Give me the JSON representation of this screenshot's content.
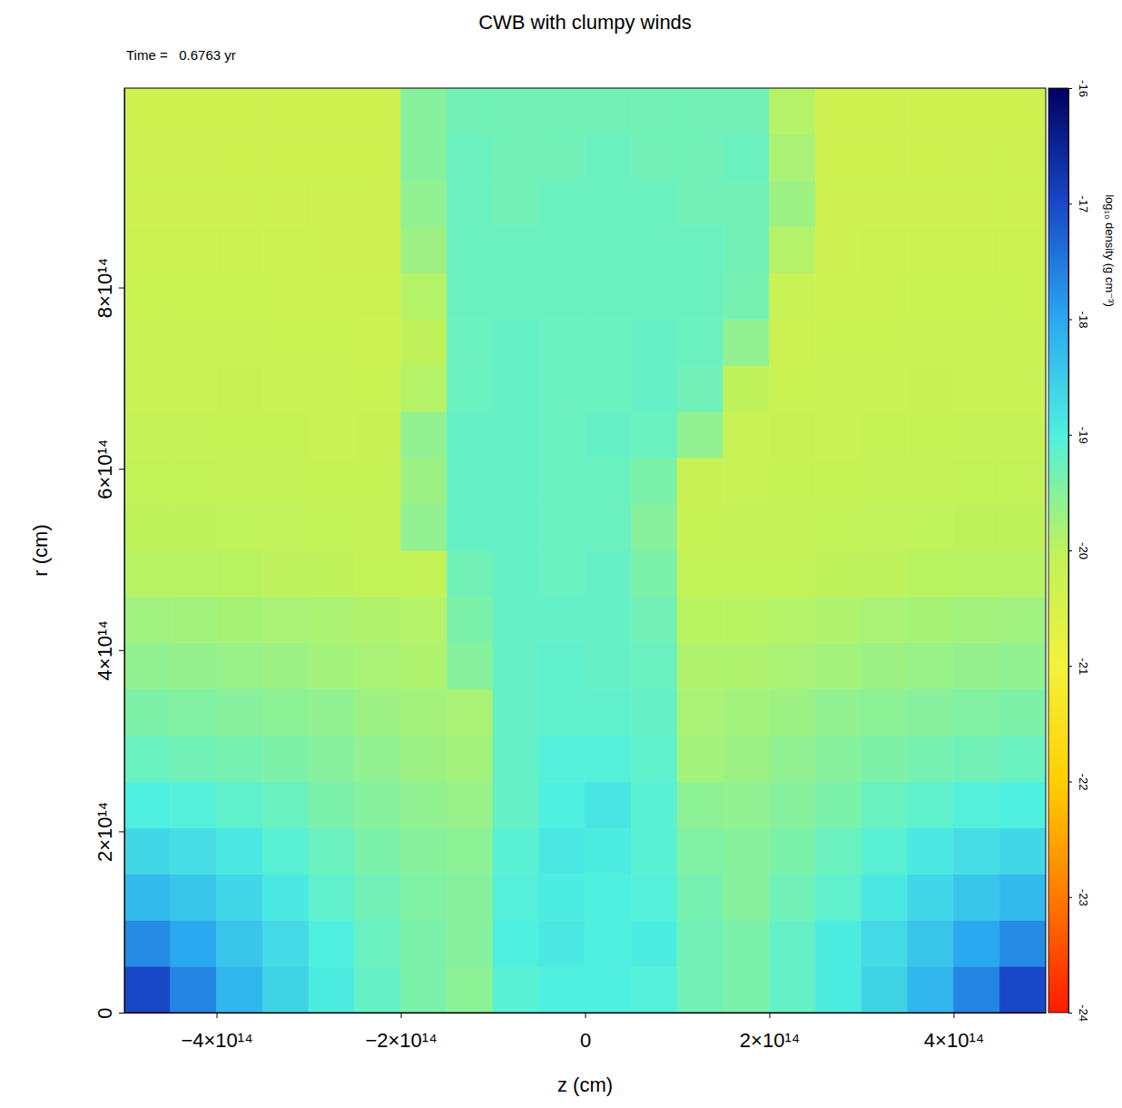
{
  "chart_data": {
    "type": "heatmap",
    "title": "CWB with clumpy winds",
    "subtitle": "Time =   0.6763 yr",
    "x_label": "z (cm)",
    "y_label": "r (cm)",
    "xlim": [
      -500000000000000.0,
      500000000000000.0
    ],
    "ylim": [
      0,
      1020000000000000.0
    ],
    "xticks": [
      {
        "value": -400000000000000.0,
        "label": "−4×10¹⁴"
      },
      {
        "value": -200000000000000.0,
        "label": "−2×10¹⁴"
      },
      0,
      {
        "value": 200000000000000.0,
        "label": "2×10¹⁴"
      },
      {
        "value": 400000000000000.0,
        "label": "4×10¹⁴"
      }
    ],
    "yticks": [
      0,
      {
        "value": 200000000000000.0,
        "label": "2×10¹⁴"
      },
      {
        "value": 400000000000000.0,
        "label": "4×10¹⁴"
      },
      {
        "value": 600000000000000.0,
        "label": "6×10¹⁴"
      },
      {
        "value": 800000000000000.0,
        "label": "8×10¹⁴"
      }
    ],
    "x_edges": [
      -500000000000000.0,
      -450000000000000.0,
      -400000000000000.0,
      -350000000000000.0,
      -300000000000000.0,
      -250000000000000.0,
      -200000000000000.0,
      -150000000000000.0,
      -100000000000000.0,
      -50000000000000.0,
      0,
      50000000000000.0,
      100000000000000.0,
      150000000000000.0,
      200000000000000.0,
      250000000000000.0,
      300000000000000.0,
      350000000000000.0,
      400000000000000.0,
      450000000000000.0,
      500000000000000.0
    ],
    "y_edges": [
      0,
      51000000000000.0,
      102000000000000.0,
      153000000000000.0,
      204000000000000.0,
      255000000000000.0,
      306000000000000.0,
      357000000000000.0,
      408000000000000.0,
      459000000000000.0,
      510000000000000.0,
      561000000000000.0,
      612000000000000.0,
      663000000000000.0,
      714000000000000.0,
      765000000000000.0,
      816000000000000.0,
      867000000000000.0,
      918000000000000.0,
      969000000000000.0,
      1020000000000000.0
    ],
    "cells": [
      [
        -17.0,
        -17.65,
        -18.2,
        -18.6,
        -18.95,
        -19.2,
        -19.4,
        -19.55,
        -19.1,
        -19.0,
        -19.0,
        -19.05,
        -19.3,
        -19.4,
        -19.2,
        -18.95,
        -18.6,
        -18.2,
        -17.65,
        -17.0
      ],
      [
        -17.7,
        -18.0,
        -18.4,
        -18.7,
        -19.0,
        -19.25,
        -19.4,
        -19.5,
        -19.0,
        -18.9,
        -19.0,
        -18.95,
        -19.3,
        -19.4,
        -19.2,
        -18.95,
        -18.7,
        -18.4,
        -18.0,
        -17.7
      ],
      [
        -18.25,
        -18.4,
        -18.65,
        -18.9,
        -19.15,
        -19.3,
        -19.45,
        -19.5,
        -19.05,
        -18.95,
        -19.0,
        -19.05,
        -19.35,
        -19.5,
        -19.3,
        -19.15,
        -18.9,
        -18.65,
        -18.4,
        -18.25
      ],
      [
        -18.65,
        -18.75,
        -18.9,
        -19.1,
        -19.25,
        -19.4,
        -19.5,
        -19.55,
        -19.1,
        -18.9,
        -18.95,
        -19.1,
        -19.45,
        -19.5,
        -19.4,
        -19.25,
        -19.1,
        -18.9,
        -18.75,
        -18.65
      ],
      [
        -19.0,
        -19.05,
        -19.15,
        -19.25,
        -19.4,
        -19.5,
        -19.6,
        -19.65,
        -19.2,
        -19.0,
        -18.85,
        -19.1,
        -19.55,
        -19.6,
        -19.5,
        -19.4,
        -19.25,
        -19.15,
        -19.05,
        -19.0
      ],
      [
        -19.25,
        -19.3,
        -19.35,
        -19.42,
        -19.5,
        -19.6,
        -19.7,
        -19.75,
        -19.2,
        -19.05,
        -19.05,
        -19.15,
        -19.75,
        -19.7,
        -19.6,
        -19.5,
        -19.42,
        -19.35,
        -19.3,
        -19.25
      ],
      [
        -19.42,
        -19.45,
        -19.5,
        -19.55,
        -19.6,
        -19.7,
        -19.75,
        -19.8,
        -19.2,
        -19.15,
        -19.15,
        -19.2,
        -19.8,
        -19.75,
        -19.7,
        -19.6,
        -19.55,
        -19.5,
        -19.45,
        -19.42
      ],
      [
        -19.6,
        -19.62,
        -19.65,
        -19.7,
        -19.75,
        -19.8,
        -19.85,
        -19.5,
        -19.2,
        -19.15,
        -19.2,
        -19.25,
        -19.85,
        -19.85,
        -19.8,
        -19.75,
        -19.7,
        -19.65,
        -19.62,
        -19.6
      ],
      [
        -19.72,
        -19.75,
        -19.78,
        -19.8,
        -19.82,
        -19.87,
        -19.9,
        -19.4,
        -19.2,
        -19.2,
        -19.2,
        -19.3,
        -19.95,
        -19.95,
        -19.9,
        -19.85,
        -19.8,
        -19.78,
        -19.75,
        -19.72
      ],
      [
        -19.93,
        -19.94,
        -19.95,
        -19.98,
        -20.0,
        -20.05,
        -20.05,
        -19.3,
        -19.2,
        -19.25,
        -19.2,
        -19.4,
        -20.08,
        -20.05,
        -20.05,
        -20.0,
        -19.98,
        -19.95,
        -19.94,
        -19.93
      ],
      [
        -20.0,
        -20.0,
        -20.02,
        -20.03,
        -20.06,
        -20.1,
        -19.6,
        -19.2,
        -19.2,
        -19.25,
        -19.25,
        -19.5,
        -20.15,
        -20.12,
        -20.1,
        -20.06,
        -20.03,
        -20.02,
        -20.0,
        -20.0
      ],
      [
        -20.07,
        -20.08,
        -20.1,
        -20.12,
        -20.14,
        -20.15,
        -19.7,
        -19.2,
        -19.2,
        -19.25,
        -19.25,
        -19.4,
        -20.18,
        -20.17,
        -20.15,
        -20.14,
        -20.12,
        -20.1,
        -20.08,
        -20.07
      ],
      [
        -20.12,
        -20.12,
        -20.14,
        -20.15,
        -20.17,
        -20.18,
        -19.6,
        -19.2,
        -19.2,
        -19.25,
        -19.2,
        -19.25,
        -19.6,
        -20.2,
        -20.18,
        -20.17,
        -20.15,
        -20.14,
        -20.12,
        -20.12
      ],
      [
        -20.17,
        -20.17,
        -20.18,
        -20.2,
        -20.2,
        -20.22,
        -19.9,
        -19.25,
        -19.2,
        -19.25,
        -19.25,
        -19.2,
        -19.3,
        -20.0,
        -20.22,
        -20.2,
        -20.2,
        -20.18,
        -20.17,
        -20.17
      ],
      [
        -20.2,
        -20.2,
        -20.2,
        -20.22,
        -20.22,
        -20.25,
        -20.0,
        -19.25,
        -19.2,
        -19.25,
        -19.25,
        -19.2,
        -19.25,
        -19.6,
        -20.25,
        -20.22,
        -20.22,
        -20.2,
        -20.2,
        -20.2
      ],
      [
        -20.22,
        -20.22,
        -20.23,
        -20.24,
        -20.25,
        -20.25,
        -19.9,
        -19.25,
        -19.25,
        -19.25,
        -19.25,
        -19.25,
        -19.25,
        -19.35,
        -20.2,
        -20.25,
        -20.24,
        -20.23,
        -20.22,
        -20.22
      ],
      [
        -20.25,
        -20.25,
        -20.25,
        -20.26,
        -20.27,
        -20.27,
        -19.7,
        -19.25,
        -19.25,
        -19.25,
        -19.25,
        -19.25,
        -19.25,
        -19.3,
        -19.9,
        -20.27,
        -20.26,
        -20.25,
        -20.25,
        -20.25
      ],
      [
        -20.27,
        -20.27,
        -20.27,
        -20.28,
        -20.28,
        -20.28,
        -19.6,
        -19.25,
        -19.3,
        -19.25,
        -19.25,
        -19.25,
        -19.3,
        -19.3,
        -19.7,
        -20.28,
        -20.28,
        -20.28,
        -20.27,
        -20.27
      ],
      [
        -20.28,
        -20.28,
        -20.3,
        -20.3,
        -20.3,
        -20.3,
        -19.5,
        -19.25,
        -19.3,
        -19.3,
        -19.25,
        -19.3,
        -19.3,
        -19.25,
        -19.8,
        -20.3,
        -20.3,
        -20.3,
        -20.28,
        -20.28
      ],
      [
        -20.3,
        -20.3,
        -20.3,
        -20.3,
        -20.3,
        -20.3,
        -19.5,
        -19.3,
        -19.3,
        -19.3,
        -19.3,
        -19.3,
        -19.3,
        -19.3,
        -19.9,
        -20.3,
        -20.3,
        -20.3,
        -20.3,
        -20.3
      ]
    ],
    "colorbar": {
      "range": [
        -24,
        -16
      ],
      "ticks": [
        -24,
        -23,
        -22,
        -21,
        -20,
        -19,
        -18,
        -17,
        -16
      ],
      "label": "log₁₀ density (g cm⁻³)"
    }
  }
}
